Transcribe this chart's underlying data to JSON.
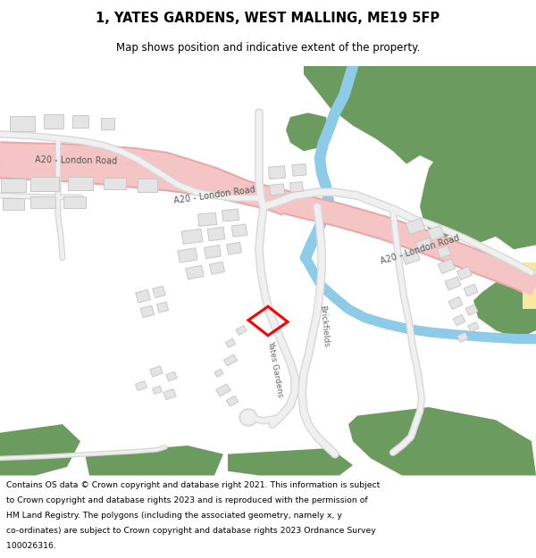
{
  "title_line1": "1, YATES GARDENS, WEST MALLING, ME19 5FP",
  "title_line2": "Map shows position and indicative extent of the property.",
  "footer_lines": [
    "Contains OS data © Crown copyright and database right 2021. This information is subject",
    "to Crown copyright and database rights 2023 and is reproduced with the permission of",
    "HM Land Registry. The polygons (including the associated geometry, namely x, y",
    "co-ordinates) are subject to Crown copyright and database rights 2023 Ordnance Survey",
    "100026316."
  ],
  "map_bg": "#f8f8f8",
  "road_color": "#f5c5c5",
  "road_border": "#e8a8a8",
  "green_color": "#6b9b5e",
  "water_color": "#8dcbe8",
  "building_fill": "#e4e4e4",
  "building_edge": "#c8c8c8",
  "road_minor_color": "#d8d8d8",
  "road_minor_fill": "#f0f0f0",
  "highlight_color": "#ff0000",
  "text_dark": "#333333",
  "road_label_color": "#555555",
  "yellow_color": "#f5e8a0"
}
